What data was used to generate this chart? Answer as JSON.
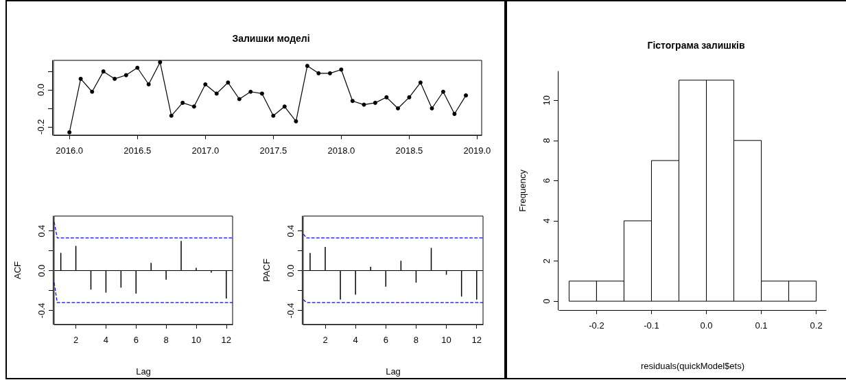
{
  "chart_data": [
    {
      "type": "line",
      "title": "Залишки моделі",
      "color": "#000000",
      "marker": "circle",
      "x": [
        2016,
        2016.083,
        2016.167,
        2016.25,
        2016.333,
        2016.417,
        2016.5,
        2016.583,
        2016.667,
        2016.75,
        2016.833,
        2016.917,
        2017,
        2017.083,
        2017.167,
        2017.25,
        2017.333,
        2017.417,
        2017.5,
        2017.583,
        2017.667,
        2017.75,
        2017.833,
        2017.917,
        2018,
        2018.083,
        2018.167,
        2018.25,
        2018.333,
        2018.417,
        2018.5,
        2018.583,
        2018.667,
        2018.75,
        2018.833,
        2018.917
      ],
      "values": [
        -0.23,
        0.06,
        -0.01,
        0.1,
        0.06,
        0.08,
        0.12,
        0.03,
        0.15,
        -0.14,
        -0.07,
        -0.09,
        0.03,
        -0.02,
        0.04,
        -0.05,
        -0.01,
        -0.02,
        -0.14,
        -0.09,
        -0.17,
        0.13,
        0.09,
        0.09,
        0.11,
        -0.06,
        -0.08,
        -0.07,
        -0.04,
        -0.1,
        -0.04,
        0.04,
        -0.1,
        -0.01,
        -0.13,
        -0.03
      ],
      "xlim": [
        2015.883,
        2019.033
      ],
      "xticks": [
        {
          "value": 2016,
          "label": "2016.0"
        },
        {
          "value": 2016.5,
          "label": "2016.5"
        },
        {
          "value": 2017,
          "label": "2017.0"
        },
        {
          "value": 2017.5,
          "label": "2017.5"
        },
        {
          "value": 2018,
          "label": "2018.0"
        },
        {
          "value": 2018.5,
          "label": "2018.5"
        },
        {
          "value": 2019,
          "label": "2019.0"
        }
      ],
      "ylim": [
        -0.245,
        0.16
      ],
      "yticks": [
        -0.2,
        {
          "value": -0.1,
          "label": null
        },
        {
          "value": 0,
          "label": "0.0"
        },
        {
          "value": 0.1,
          "label": null
        }
      ]
    },
    {
      "type": "bar",
      "xlabel": "Lag",
      "ylabel": "ACF",
      "x": [
        1,
        2,
        3,
        4,
        5,
        6,
        7,
        8,
        9,
        10,
        11,
        12
      ],
      "series": [
        {
          "type": "bar",
          "color": "#000000",
          "values": [
            0.18,
            0.25,
            -0.19,
            -0.22,
            -0.17,
            -0.23,
            0.08,
            -0.09,
            0.3,
            0.03,
            -0.02,
            -0.28
          ]
        },
        {
          "type": "line",
          "color": "#0000ff",
          "line_style": "dashed",
          "x": [
            0.56,
            0.76,
            12.42
          ],
          "values": [
            0.49,
            0.33,
            0.33
          ]
        },
        {
          "type": "line",
          "color": "#0000ff",
          "line_style": "dashed",
          "x": [
            0.56,
            0.76,
            12.42
          ],
          "values": [
            -0.12,
            -0.32,
            -0.32
          ]
        }
      ],
      "xlim": [
        0.56,
        12.42
      ],
      "xticks": [
        2,
        4,
        6,
        8,
        10,
        12
      ],
      "ylim": [
        -0.54,
        0.55
      ],
      "yticks": [
        -0.4,
        {
          "value": -0.2,
          "label": null
        },
        {
          "value": 0,
          "label": "0.0"
        },
        {
          "value": 0.2,
          "label": null
        },
        0.4
      ],
      "ref_lines": [
        {
          "axis": "y",
          "value": 0,
          "color": "#000000",
          "line_style": "solid"
        }
      ]
    },
    {
      "type": "bar",
      "xlabel": "Lag",
      "ylabel": "PACF",
      "x": [
        1,
        2,
        3,
        4,
        5,
        6,
        7,
        8,
        9,
        10,
        11,
        12
      ],
      "series": [
        {
          "type": "bar",
          "color": "#000000",
          "values": [
            0.18,
            0.24,
            -0.29,
            -0.24,
            0.04,
            -0.16,
            0.1,
            -0.12,
            0.23,
            -0.04,
            -0.26,
            -0.29
          ]
        },
        {
          "type": "line",
          "color": "#0000ff",
          "line_style": "dashed",
          "x": [
            0.55,
            0.77,
            12.42
          ],
          "values": [
            0.37,
            0.33,
            0.33
          ]
        },
        {
          "type": "line",
          "color": "#0000ff",
          "line_style": "dashed",
          "x": [
            0.55,
            0.77,
            12.42
          ],
          "values": [
            -0.29,
            -0.32,
            -0.32
          ]
        }
      ],
      "xlim": [
        0.55,
        12.42
      ],
      "xticks": [
        2,
        4,
        6,
        8,
        10,
        12
      ],
      "ylim": [
        -0.54,
        0.55
      ],
      "yticks": [
        -0.4,
        {
          "value": -0.2,
          "label": null
        },
        {
          "value": 0,
          "label": "0.0"
        },
        {
          "value": 0.2,
          "label": null
        },
        0.4
      ],
      "ref_lines": [
        {
          "axis": "y",
          "value": 0,
          "color": "#000000",
          "line_style": "solid"
        }
      ]
    },
    {
      "type": "histogram",
      "title": "Гістограма залишків",
      "xlabel": "residuals(quickModel$ets)",
      "ylabel": "Frequency",
      "color": "#ffffff",
      "bins": [
        -0.25,
        -0.2,
        -0.15,
        -0.1,
        -0.05,
        0,
        0.05,
        0.1,
        0.15,
        0.2
      ],
      "values": [
        1,
        1,
        4,
        7,
        11,
        11,
        8,
        1,
        1
      ],
      "xlim": [
        -0.268,
        0.218
      ],
      "xticks": [
        -0.2,
        -0.1,
        {
          "value": 0,
          "label": "0.0"
        },
        0.1,
        0.2
      ],
      "ylim": [
        -0.44,
        11.44
      ],
      "yticks": [
        0,
        2,
        4,
        6,
        8,
        10
      ]
    }
  ]
}
